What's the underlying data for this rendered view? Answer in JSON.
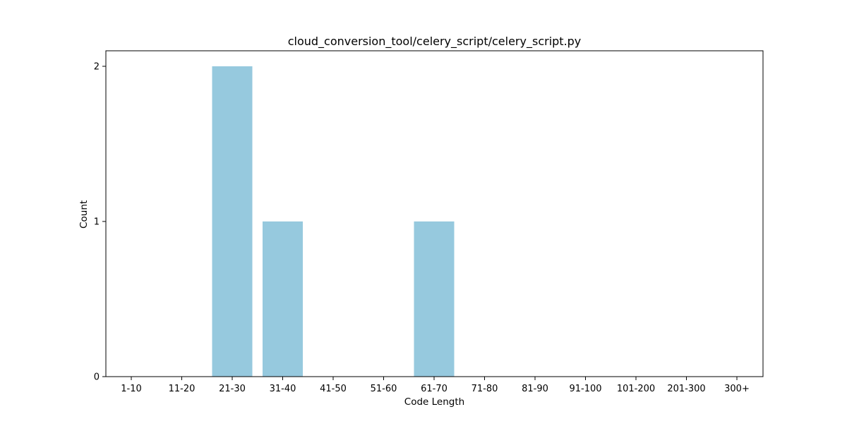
{
  "chart_data": {
    "type": "bar",
    "title": "cloud_conversion_tool/celery_script/celery_script.py",
    "xlabel": "Code Length",
    "ylabel": "Count",
    "categories": [
      "1-10",
      "11-20",
      "21-30",
      "31-40",
      "41-50",
      "51-60",
      "61-70",
      "71-80",
      "81-90",
      "91-100",
      "101-200",
      "201-300",
      "300+"
    ],
    "values": [
      0,
      0,
      2,
      1,
      0,
      0,
      1,
      0,
      0,
      0,
      0,
      0,
      0
    ],
    "yticks": [
      0,
      1,
      2
    ],
    "ylim": [
      0,
      2.1
    ],
    "bar_color": "#96c9de",
    "grid": false,
    "legend": "none"
  }
}
